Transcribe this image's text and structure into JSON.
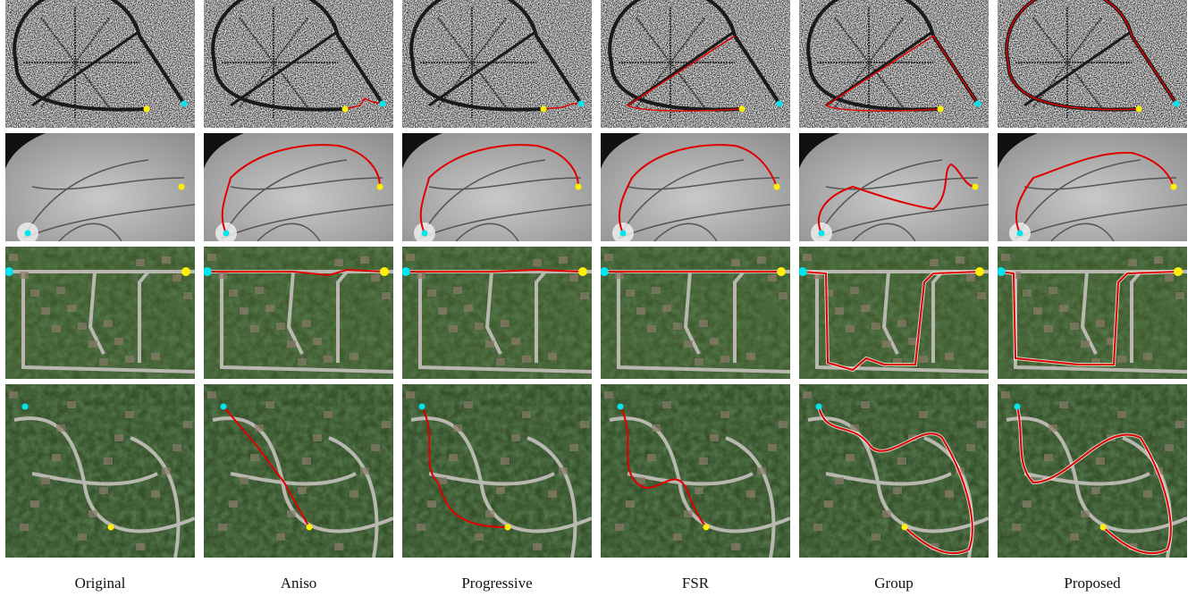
{
  "columns": [
    "Original",
    "Aniso",
    "Progressive",
    "FSR",
    "Group",
    "Proposed"
  ]
}
